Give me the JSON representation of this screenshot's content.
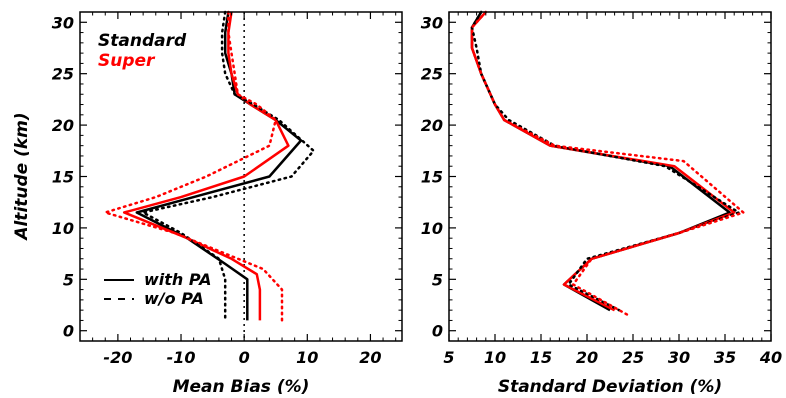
{
  "chart_data": [
    {
      "type": "line",
      "panel": "left",
      "xlabel": "Mean Bias (%)",
      "ylabel": "Altitude (km)",
      "xlim": [
        -26,
        25
      ],
      "ylim": [
        -1,
        31
      ],
      "xticks": [
        -20,
        -10,
        0,
        10,
        20
      ],
      "xtick_labels": [
        "-20",
        "-10",
        "0",
        "10",
        "20"
      ],
      "yticks": [
        0,
        5,
        10,
        15,
        20,
        25,
        30
      ],
      "ytick_labels": [
        "0",
        "5",
        "10",
        "15",
        "20",
        "25",
        "30"
      ],
      "grid": false,
      "reference_line": {
        "x": 0,
        "style": "dotted"
      },
      "title_lines": [
        {
          "text": "Standard",
          "color": "#000000"
        },
        {
          "text": "Super",
          "color": "#ff0000"
        }
      ],
      "legend": {
        "position": "bottom-left",
        "entries": [
          {
            "label": "with PA",
            "style": "solid"
          },
          {
            "label": "w/o PA",
            "style": "dashed"
          }
        ]
      },
      "series": [
        {
          "color": "#000000",
          "style": "solid",
          "points": [
            [
              -2.5,
              31
            ],
            [
              -3,
              29
            ],
            [
              -3,
              27
            ],
            [
              -2,
              25
            ],
            [
              -1.5,
              23
            ],
            [
              1,
              22
            ],
            [
              5,
              20.5
            ],
            [
              9,
              18.5
            ],
            [
              4,
              15
            ],
            [
              -8,
              13
            ],
            [
              -17,
              11.5
            ],
            [
              -9,
              9
            ],
            [
              -3,
              6.5
            ],
            [
              0.5,
              5
            ],
            [
              0.5,
              3
            ],
            [
              0.5,
              1
            ]
          ]
        },
        {
          "color": "#ff0000",
          "style": "solid",
          "points": [
            [
              -2,
              31
            ],
            [
              -2.5,
              29
            ],
            [
              -2.5,
              27
            ],
            [
              -2,
              25
            ],
            [
              -1,
              23
            ],
            [
              1,
              22
            ],
            [
              5,
              20.5
            ],
            [
              7,
              18
            ],
            [
              0,
              15
            ],
            [
              -10,
              13
            ],
            [
              -19,
              11.5
            ],
            [
              -9,
              9
            ],
            [
              -2,
              7
            ],
            [
              2,
              5.5
            ],
            [
              2.5,
              4
            ],
            [
              2.5,
              1
            ]
          ]
        },
        {
          "color": "#000000",
          "style": "dotted",
          "points": [
            [
              -3,
              31
            ],
            [
              -3.5,
              29
            ],
            [
              -3.5,
              27
            ],
            [
              -3,
              25
            ],
            [
              -1.5,
              23
            ],
            [
              1.5,
              22
            ],
            [
              5.5,
              20.5
            ],
            [
              11,
              17.5
            ],
            [
              7.5,
              15
            ],
            [
              -5,
              13
            ],
            [
              -16,
              11.5
            ],
            [
              -10,
              9.5
            ],
            [
              -4,
              7
            ],
            [
              -3,
              5
            ],
            [
              -3,
              3
            ],
            [
              -3,
              1
            ]
          ]
        },
        {
          "color": "#ff0000",
          "style": "dotted",
          "points": [
            [
              -2.5,
              31
            ],
            [
              -2.5,
              29
            ],
            [
              -2,
              27
            ],
            [
              -1.5,
              25
            ],
            [
              -1,
              23
            ],
            [
              2,
              22
            ],
            [
              5,
              20.5
            ],
            [
              4,
              18
            ],
            [
              -6,
              15
            ],
            [
              -14,
              13
            ],
            [
              -22,
              11.5
            ],
            [
              -11,
              9.5
            ],
            [
              -3,
              7.5
            ],
            [
              3,
              6
            ],
            [
              6,
              4
            ],
            [
              6,
              1
            ]
          ]
        }
      ]
    },
    {
      "type": "line",
      "panel": "right",
      "xlabel": "Standard Deviation (%)",
      "ylabel": "",
      "xlim": [
        5,
        40
      ],
      "ylim": [
        -1,
        31
      ],
      "xticks": [
        5,
        10,
        15,
        20,
        25,
        30,
        35,
        40
      ],
      "xtick_labels": [
        "5",
        "10",
        "15",
        "20",
        "25",
        "30",
        "35",
        "40"
      ],
      "yticks": [
        0,
        5,
        10,
        15,
        20,
        25,
        30
      ],
      "ytick_labels": [
        "0",
        "5",
        "10",
        "15",
        "20",
        "25",
        "30"
      ],
      "grid": false,
      "series": [
        {
          "color": "#000000",
          "style": "solid",
          "points": [
            [
              8.5,
              31
            ],
            [
              7.5,
              29.5
            ],
            [
              7.5,
              27.5
            ],
            [
              8.5,
              25
            ],
            [
              10,
              22
            ],
            [
              11,
              20.5
            ],
            [
              16,
              18
            ],
            [
              29,
              16
            ],
            [
              35.5,
              11.5
            ],
            [
              30,
              9.5
            ],
            [
              20.5,
              7
            ],
            [
              17.5,
              4.5
            ],
            [
              22.5,
              2
            ]
          ]
        },
        {
          "color": "#ff0000",
          "style": "solid",
          "points": [
            [
              9,
              31
            ],
            [
              7.5,
              29.5
            ],
            [
              7.5,
              27.5
            ],
            [
              8.5,
              25
            ],
            [
              10,
              22
            ],
            [
              11,
              20.5
            ],
            [
              16,
              18
            ],
            [
              29.5,
              16
            ],
            [
              36,
              11.5
            ],
            [
              30,
              9.5
            ],
            [
              20.5,
              7
            ],
            [
              17.5,
              4.5
            ],
            [
              23,
              2
            ]
          ]
        },
        {
          "color": "#000000",
          "style": "dotted",
          "points": [
            [
              8.5,
              31
            ],
            [
              7.5,
              29.5
            ],
            [
              8,
              27.5
            ],
            [
              8.5,
              25
            ],
            [
              10,
              22
            ],
            [
              11.5,
              20.5
            ],
            [
              16.5,
              18
            ],
            [
              28.5,
              16
            ],
            [
              36.5,
              11.5
            ],
            [
              30,
              9.5
            ],
            [
              20,
              7
            ],
            [
              18,
              4.5
            ],
            [
              23.5,
              2
            ]
          ]
        },
        {
          "color": "#ff0000",
          "style": "dotted",
          "points": [
            [
              9,
              31
            ],
            [
              7.5,
              29.5
            ],
            [
              7.5,
              27.5
            ],
            [
              8.5,
              25
            ],
            [
              10,
              22
            ],
            [
              11,
              20.5
            ],
            [
              16.5,
              18
            ],
            [
              30.5,
              16.5
            ],
            [
              37,
              11.5
            ],
            [
              30,
              9.5
            ],
            [
              20.5,
              7
            ],
            [
              18.5,
              4.5
            ],
            [
              24.5,
              1.5
            ]
          ]
        }
      ]
    }
  ]
}
